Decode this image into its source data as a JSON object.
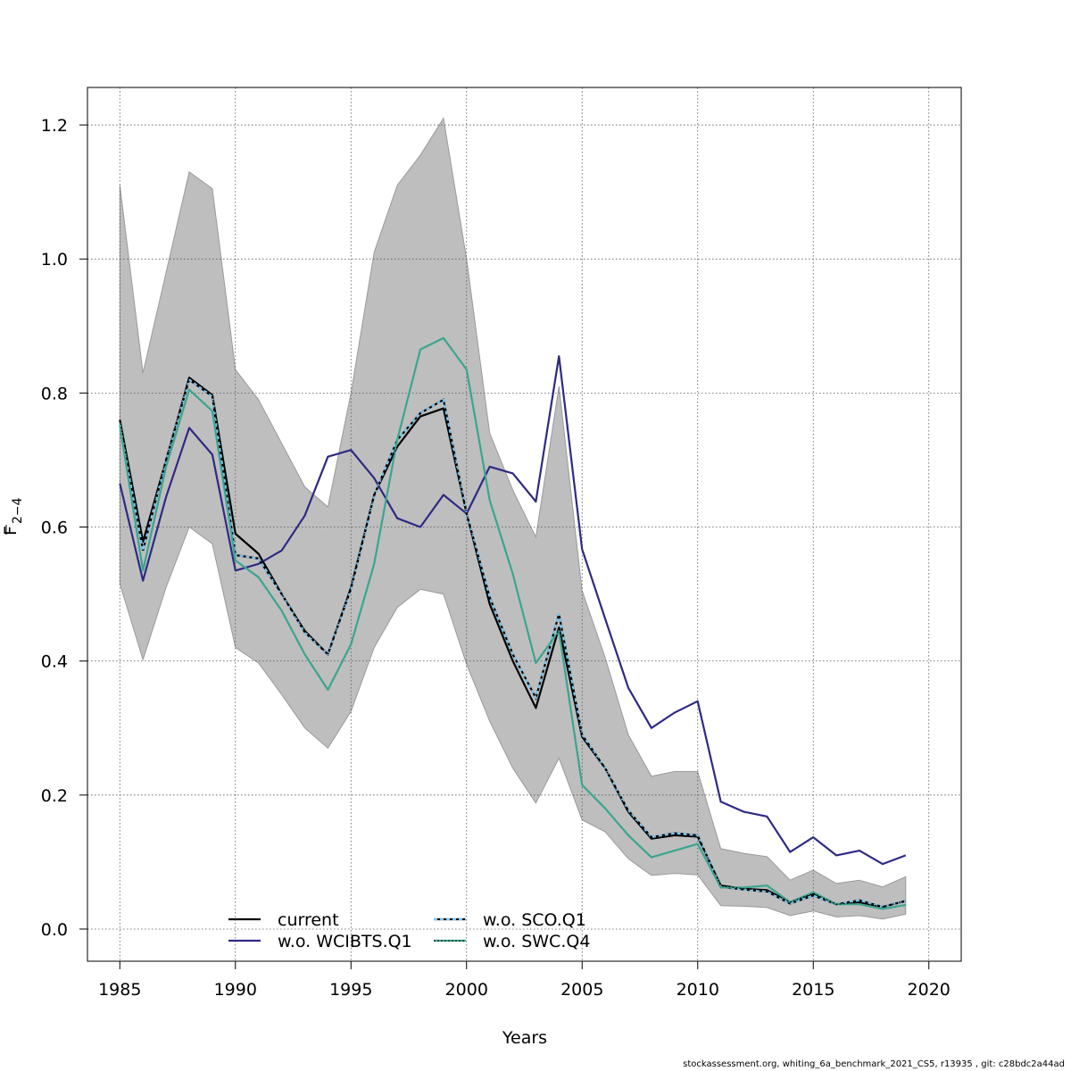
{
  "chart_data": {
    "type": "line",
    "xlabel": "Years",
    "ylabel_main": "F",
    "ylabel_sub": "2−4",
    "xlim": [
      1983.6,
      2021.4
    ],
    "ylim": [
      -0.048,
      1.256
    ],
    "x_ticks": [
      1985,
      1990,
      1995,
      2000,
      2005,
      2010,
      2015,
      2020
    ],
    "x_tick_labels": [
      "1985",
      "1990",
      "1995",
      "2000",
      "2005",
      "2010",
      "2015",
      "2020"
    ],
    "y_ticks": [
      0.0,
      0.2,
      0.4,
      0.6,
      0.8,
      1.0,
      1.2
    ],
    "y_tick_labels": [
      "0.0",
      "0.2",
      "0.4",
      "0.6",
      "0.8",
      "1.0",
      "1.2"
    ],
    "grid": true,
    "legend_position": "bottom-left",
    "x": [
      1985,
      1986,
      1987,
      1988,
      1989,
      1990,
      1991,
      1992,
      1993,
      1994,
      1995,
      1996,
      1997,
      1998,
      1999,
      2000,
      2001,
      2002,
      2003,
      2004,
      2005,
      2006,
      2007,
      2008,
      2009,
      2010,
      2011,
      2012,
      2013,
      2014,
      2015,
      2016,
      2017,
      2018,
      2019
    ],
    "band": {
      "color": "#bebebe",
      "upper": [
        1.11,
        0.83,
        0.98,
        1.13,
        1.105,
        0.835,
        0.79,
        0.725,
        0.66,
        0.63,
        0.8,
        1.01,
        1.11,
        1.155,
        1.21,
        1.0,
        0.74,
        0.655,
        0.585,
        0.81,
        0.505,
        0.405,
        0.29,
        0.228,
        0.235,
        0.235,
        0.12,
        0.113,
        0.108,
        0.073,
        0.088,
        0.068,
        0.073,
        0.063,
        0.078
      ],
      "lower": [
        0.515,
        0.402,
        0.51,
        0.6,
        0.575,
        0.42,
        0.397,
        0.35,
        0.3,
        0.27,
        0.325,
        0.42,
        0.48,
        0.507,
        0.5,
        0.395,
        0.31,
        0.24,
        0.188,
        0.255,
        0.163,
        0.145,
        0.105,
        0.08,
        0.083,
        0.081,
        0.035,
        0.034,
        0.032,
        0.02,
        0.027,
        0.018,
        0.02,
        0.015,
        0.022
      ]
    },
    "series": [
      {
        "name": "current",
        "color": "#000000",
        "dash": "",
        "width": 2.2,
        "values": [
          0.76,
          0.578,
          0.7,
          0.823,
          0.797,
          0.59,
          0.56,
          0.5,
          0.445,
          0.41,
          0.51,
          0.648,
          0.72,
          0.765,
          0.777,
          0.62,
          0.485,
          0.4,
          0.33,
          0.45,
          0.287,
          0.24,
          0.175,
          0.135,
          0.14,
          0.138,
          0.065,
          0.06,
          0.058,
          0.04,
          0.053,
          0.037,
          0.04,
          0.033,
          0.042
        ]
      },
      {
        "name": "w.o. WCIBTS.Q1",
        "color": "#2e2a84",
        "dash": "",
        "width": 2.2,
        "values": [
          0.665,
          0.52,
          0.645,
          0.748,
          0.708,
          0.535,
          0.545,
          0.565,
          0.617,
          0.705,
          0.715,
          0.673,
          0.613,
          0.6,
          0.648,
          0.62,
          0.69,
          0.68,
          0.638,
          0.855,
          0.567,
          0.463,
          0.36,
          0.3,
          0.323,
          0.34,
          0.19,
          0.175,
          0.168,
          0.115,
          0.137,
          0.11,
          0.117,
          0.097,
          0.11
        ]
      },
      {
        "name": "w.o. SCO.Q1",
        "color": "#7ac7f2",
        "dash": "4,3",
        "width": 2.2,
        "values": [
          0.755,
          0.565,
          0.7,
          0.82,
          0.795,
          0.558,
          0.553,
          0.5,
          0.443,
          0.41,
          0.508,
          0.647,
          0.73,
          0.77,
          0.79,
          0.62,
          0.495,
          0.41,
          0.345,
          0.47,
          0.29,
          0.24,
          0.177,
          0.137,
          0.143,
          0.14,
          0.063,
          0.059,
          0.056,
          0.038,
          0.05,
          0.037,
          0.043,
          0.033,
          0.042
        ]
      },
      {
        "name": "w.o. SWC.Q4",
        "color": "#3aa58f",
        "dash": "",
        "width": 2.2,
        "values": [
          0.752,
          0.535,
          0.69,
          0.805,
          0.773,
          0.55,
          0.525,
          0.475,
          0.41,
          0.357,
          0.425,
          0.545,
          0.73,
          0.865,
          0.882,
          0.835,
          0.64,
          0.53,
          0.397,
          0.445,
          0.215,
          0.18,
          0.14,
          0.107,
          0.117,
          0.127,
          0.062,
          0.062,
          0.065,
          0.04,
          0.055,
          0.037,
          0.037,
          0.03,
          0.036
        ]
      }
    ]
  },
  "legend": {
    "items": [
      "current",
      "w.o. WCIBTS.Q1",
      "w.o. SCO.Q1",
      "w.o. SWC.Q4"
    ]
  },
  "footer_text": "stockassessment.org, whiting_6a_benchmark_2021_CS5, r13935 , git: c28bdc2a44ad"
}
